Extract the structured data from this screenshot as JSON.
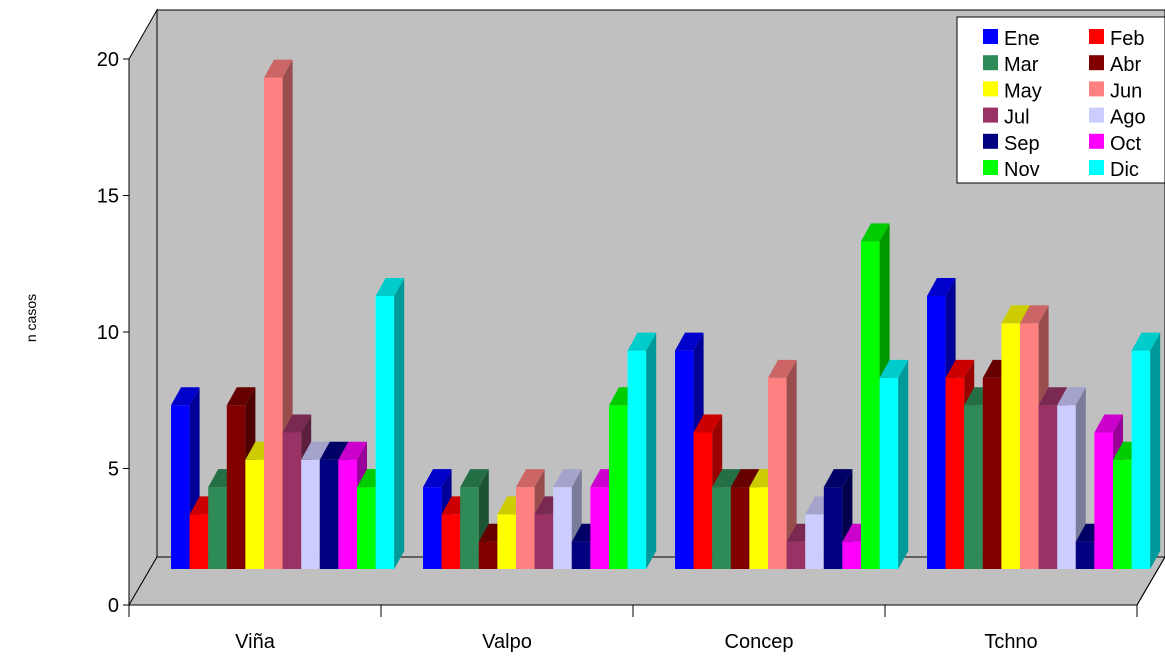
{
  "chart_data": {
    "type": "bar",
    "ylabel": "n casos",
    "xlabel": "",
    "ylim": [
      0,
      20
    ],
    "yticks": [
      0,
      5,
      10,
      15,
      20
    ],
    "categories": [
      "Viña",
      "Valpo",
      "Concep",
      "Tchno"
    ],
    "legend_position": "top-right",
    "grid": false,
    "series": [
      {
        "name": "Ene",
        "color": "#0000ff",
        "values": [
          6,
          3,
          8,
          10
        ]
      },
      {
        "name": "Feb",
        "color": "#ff0000",
        "values": [
          2,
          2,
          5,
          7
        ]
      },
      {
        "name": "Mar",
        "color": "#2e8b57",
        "values": [
          3,
          3,
          3,
          6
        ]
      },
      {
        "name": "Abr",
        "color": "#800000",
        "values": [
          6,
          1,
          3,
          7
        ]
      },
      {
        "name": "May",
        "color": "#ffff00",
        "values": [
          4,
          2,
          3,
          9
        ]
      },
      {
        "name": "Jun",
        "color": "#ff8080",
        "values": [
          18,
          3,
          7,
          9
        ]
      },
      {
        "name": "Jul",
        "color": "#993366",
        "values": [
          5,
          2,
          1,
          6
        ]
      },
      {
        "name": "Ago",
        "color": "#ccccff",
        "values": [
          4,
          3,
          2,
          6
        ]
      },
      {
        "name": "Sep",
        "color": "#000080",
        "values": [
          4,
          1,
          3,
          1
        ]
      },
      {
        "name": "Oct",
        "color": "#ff00ff",
        "values": [
          4,
          3,
          1,
          5
        ]
      },
      {
        "name": "Nov",
        "color": "#00ff00",
        "values": [
          3,
          6,
          12,
          4
        ]
      },
      {
        "name": "Dic",
        "color": "#00ffff",
        "values": [
          10,
          8,
          7,
          8
        ]
      }
    ]
  }
}
